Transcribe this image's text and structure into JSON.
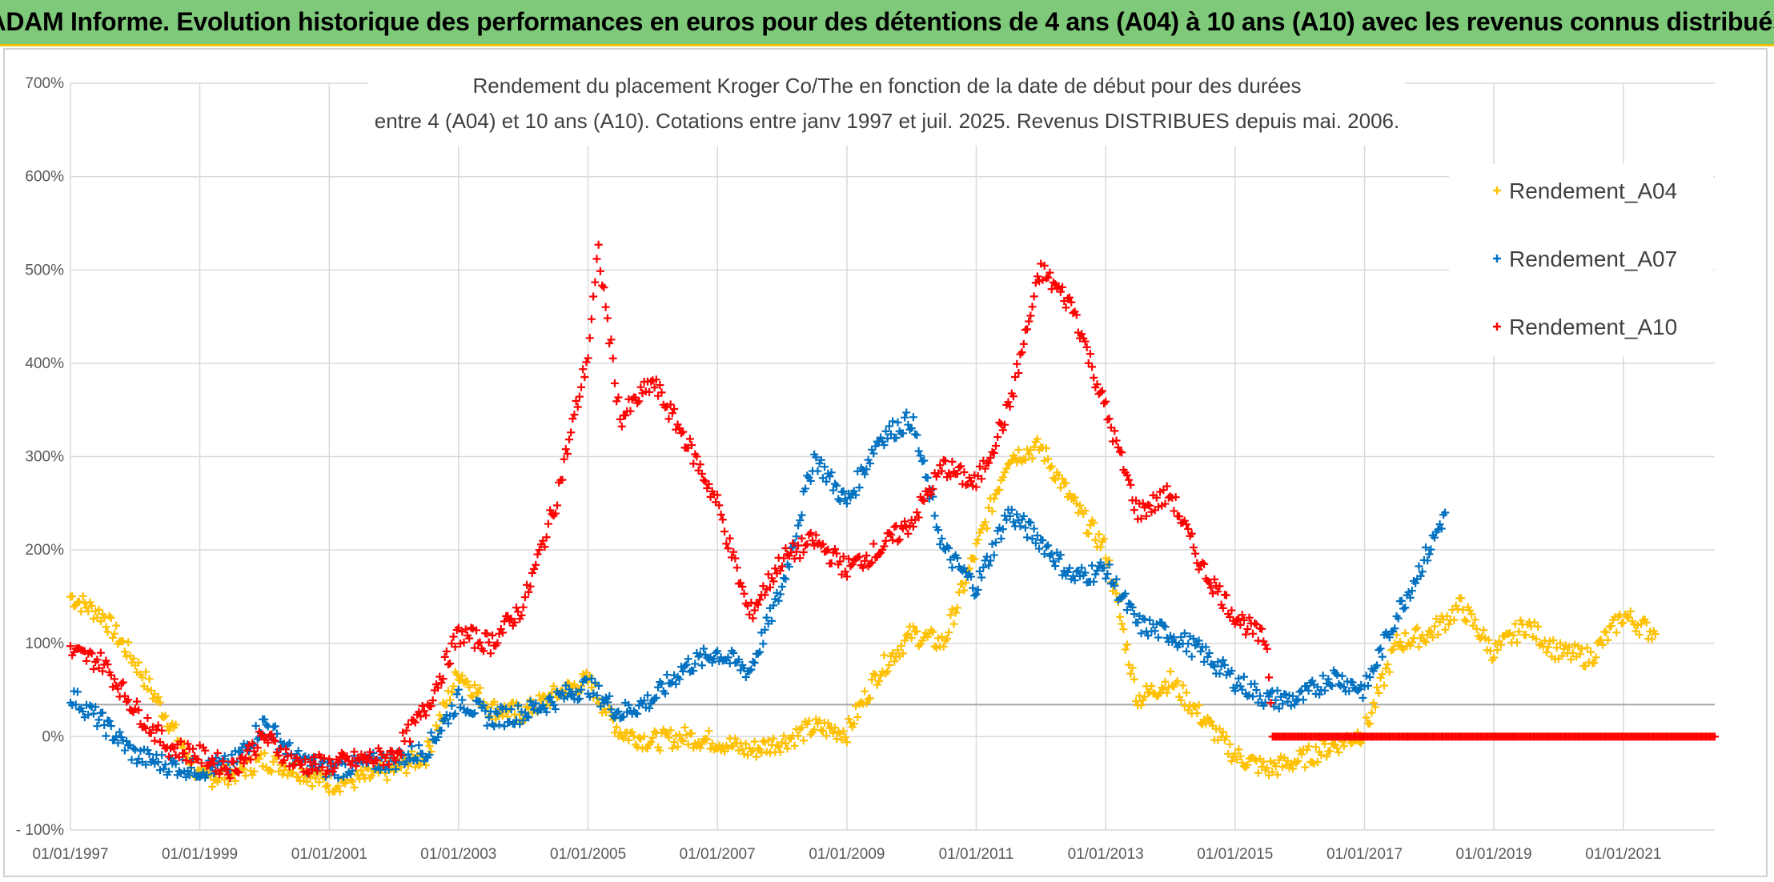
{
  "banner": {
    "title": "ADAM Informe. Evolution historique des performances en euros pour des détentions de 4 ans (A04) à 10 ans (A10) avec les revenus connus distribués"
  },
  "colors": {
    "banner_bg": "#7ec97a",
    "A04": "#ffc000",
    "A07": "#0070c0",
    "A10": "#ff0000",
    "grid": "#d9d9d9"
  },
  "chart_data": {
    "type": "scatter",
    "title_line1": "Rendement du placement Kroger Co/The en fonction de la date de début pour des durées",
    "title_line2": "entre 4 (A04) et 10 ans (A10). Cotations entre janv 1997 et juil. 2025. Revenus DISTRIBUES depuis mai. 2006.",
    "x_type": "date",
    "xlim": [
      "1997-01-01",
      "2022-06-01"
    ],
    "x_ticks": [
      "01/01/1997",
      "01/01/1999",
      "01/01/2001",
      "01/01/2003",
      "01/01/2005",
      "01/01/2007",
      "01/01/2009",
      "01/01/2011",
      "01/01/2013",
      "01/01/2015",
      "01/01/2017",
      "01/01/2019",
      "01/01/2021"
    ],
    "ylim": [
      -100,
      700
    ],
    "y_ticks": [
      "700%",
      "600%",
      "500%",
      "400%",
      "300%",
      "200%",
      "100%",
      "0%",
      "- 100%"
    ],
    "grid": true,
    "legend_position": "top-right",
    "marker": "+",
    "series": [
      {
        "name": "Rendement_A04",
        "color": "#ffc000",
        "points": [
          [
            "1997-01-01",
            150
          ],
          [
            "1997-07-01",
            130
          ],
          [
            "1998-01-01",
            80
          ],
          [
            "1998-07-01",
            20
          ],
          [
            "1999-01-01",
            -45
          ],
          [
            "1999-07-01",
            -40
          ],
          [
            "2000-01-01",
            -25
          ],
          [
            "2000-07-01",
            -35
          ],
          [
            "2001-01-01",
            -50
          ],
          [
            "2001-07-01",
            -45
          ],
          [
            "2002-01-01",
            -35
          ],
          [
            "2002-07-01",
            -20
          ],
          [
            "2003-01-01",
            70
          ],
          [
            "2003-07-01",
            30
          ],
          [
            "2004-01-01",
            25
          ],
          [
            "2004-07-01",
            45
          ],
          [
            "2005-01-01",
            60
          ],
          [
            "2005-07-01",
            5
          ],
          [
            "2006-01-01",
            -5
          ],
          [
            "2006-07-01",
            0
          ],
          [
            "2007-01-01",
            -5
          ],
          [
            "2007-07-01",
            -15
          ],
          [
            "2008-01-01",
            -5
          ],
          [
            "2008-07-01",
            10
          ],
          [
            "2009-01-01",
            5
          ],
          [
            "2009-07-01",
            70
          ],
          [
            "2010-01-01",
            110
          ],
          [
            "2010-07-01",
            100
          ],
          [
            "2011-01-01",
            200
          ],
          [
            "2011-07-01",
            300
          ],
          [
            "2012-01-01",
            310
          ],
          [
            "2012-07-01",
            250
          ],
          [
            "2013-01-01",
            200
          ],
          [
            "2013-07-01",
            40
          ],
          [
            "2014-01-01",
            60
          ],
          [
            "2014-07-01",
            20
          ],
          [
            "2015-01-01",
            -20
          ],
          [
            "2015-07-01",
            -35
          ],
          [
            "2016-01-01",
            -25
          ],
          [
            "2016-07-01",
            -10
          ],
          [
            "2017-01-01",
            5
          ],
          [
            "2017-07-01",
            100
          ],
          [
            "2018-01-01",
            110
          ],
          [
            "2018-07-01",
            140
          ],
          [
            "2019-01-01",
            90
          ],
          [
            "2019-07-01",
            120
          ],
          [
            "2020-01-01",
            90
          ],
          [
            "2020-07-01",
            85
          ],
          [
            "2021-01-01",
            130
          ],
          [
            "2021-07-01",
            110
          ]
        ]
      },
      {
        "name": "Rendement_A07",
        "color": "#0070c0",
        "points": [
          [
            "1997-01-01",
            45
          ],
          [
            "1997-07-01",
            15
          ],
          [
            "1998-01-01",
            -20
          ],
          [
            "1998-07-01",
            -30
          ],
          [
            "1999-01-01",
            -35
          ],
          [
            "1999-07-01",
            -30
          ],
          [
            "2000-01-01",
            15
          ],
          [
            "2000-07-01",
            -25
          ],
          [
            "2001-01-01",
            -35
          ],
          [
            "2001-07-01",
            -30
          ],
          [
            "2002-01-01",
            -25
          ],
          [
            "2002-07-01",
            -15
          ],
          [
            "2003-01-01",
            40
          ],
          [
            "2003-07-01",
            20
          ],
          [
            "2004-01-01",
            25
          ],
          [
            "2004-07-01",
            40
          ],
          [
            "2005-01-01",
            55
          ],
          [
            "2005-07-01",
            25
          ],
          [
            "2006-01-01",
            40
          ],
          [
            "2006-07-01",
            75
          ],
          [
            "2007-01-01",
            90
          ],
          [
            "2007-07-01",
            70
          ],
          [
            "2008-01-01",
            160
          ],
          [
            "2008-07-01",
            300
          ],
          [
            "2009-01-01",
            250
          ],
          [
            "2009-07-01",
            320
          ],
          [
            "2010-01-01",
            340
          ],
          [
            "2010-07-01",
            200
          ],
          [
            "2011-01-01",
            160
          ],
          [
            "2011-07-01",
            240
          ],
          [
            "2012-01-01",
            210
          ],
          [
            "2012-07-01",
            170
          ],
          [
            "2013-01-01",
            180
          ],
          [
            "2013-07-01",
            120
          ],
          [
            "2014-01-01",
            110
          ],
          [
            "2014-07-01",
            90
          ],
          [
            "2015-01-01",
            60
          ],
          [
            "2015-07-01",
            40
          ],
          [
            "2016-01-01",
            40
          ],
          [
            "2016-07-01",
            65
          ],
          [
            "2017-01-01",
            50
          ],
          [
            "2017-07-01",
            130
          ],
          [
            "2018-01-01",
            200
          ],
          [
            "2018-04-01",
            240
          ]
        ]
      },
      {
        "name": "Rendement_A10",
        "color": "#ff0000",
        "points": [
          [
            "1997-01-01",
            90
          ],
          [
            "1997-07-01",
            80
          ],
          [
            "1998-01-01",
            30
          ],
          [
            "1998-07-01",
            -10
          ],
          [
            "1999-01-01",
            -20
          ],
          [
            "1999-07-01",
            -35
          ],
          [
            "2000-01-01",
            0
          ],
          [
            "2000-07-01",
            -30
          ],
          [
            "2001-01-01",
            -30
          ],
          [
            "2001-07-01",
            -25
          ],
          [
            "2002-01-01",
            -20
          ],
          [
            "2002-07-01",
            30
          ],
          [
            "2003-01-01",
            110
          ],
          [
            "2003-07-01",
            100
          ],
          [
            "2004-01-01",
            140
          ],
          [
            "2004-07-01",
            250
          ],
          [
            "2005-01-01",
            410
          ],
          [
            "2005-03-01",
            520
          ],
          [
            "2005-07-01",
            340
          ],
          [
            "2006-01-01",
            380
          ],
          [
            "2006-07-01",
            320
          ],
          [
            "2007-01-01",
            250
          ],
          [
            "2007-07-01",
            130
          ],
          [
            "2008-01-01",
            190
          ],
          [
            "2008-07-01",
            210
          ],
          [
            "2009-01-01",
            180
          ],
          [
            "2009-07-01",
            200
          ],
          [
            "2010-01-01",
            230
          ],
          [
            "2010-07-01",
            290
          ],
          [
            "2011-01-01",
            270
          ],
          [
            "2011-07-01",
            350
          ],
          [
            "2012-01-01",
            500
          ],
          [
            "2012-07-01",
            460
          ],
          [
            "2013-01-01",
            350
          ],
          [
            "2013-07-01",
            240
          ],
          [
            "2014-01-01",
            260
          ],
          [
            "2014-07-01",
            180
          ],
          [
            "2015-01-01",
            130
          ],
          [
            "2015-07-01",
            100
          ],
          [
            "2015-08-01",
            0
          ],
          [
            "2022-06-01",
            0
          ]
        ]
      }
    ]
  }
}
